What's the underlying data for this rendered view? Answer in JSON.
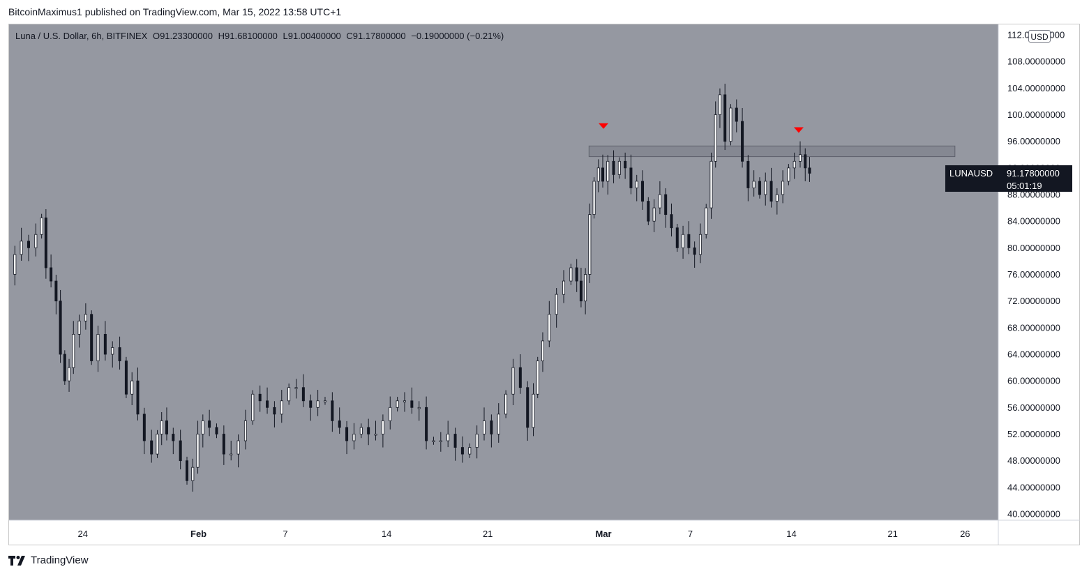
{
  "publisher_line": "BitcoinMaximus1 published on TradingView.com, Mar 15, 2022 13:58 UTC+1",
  "legend": {
    "title": "Luna / U.S. Dollar, 6h, BITFINEX",
    "o_label": "O",
    "o_value": "91.23300000",
    "h_label": "H",
    "h_value": "91.68100000",
    "l_label": "L",
    "l_value": "91.00400000",
    "c_label": "C",
    "c_value": "91.17800000",
    "change": "−0.19000000 (−0.21%)"
  },
  "currency_badge": "USD",
  "price_tag": {
    "symbol": "LUNAUSD",
    "price": "91.17800000",
    "countdown": "05:01:19"
  },
  "footer_brand": "TradingView",
  "colors": {
    "plot_bg": "#9598a1",
    "candle_up": "#ffffff",
    "candle_down": "#131722",
    "marker": "#ff0000",
    "zone": "#787b86"
  },
  "chart_data": {
    "type": "candlestick",
    "title": "Luna / U.S. Dollar, 6h, BITFINEX",
    "ylim": [
      40,
      112
    ],
    "y_ticks": [
      "112.00000000",
      "108.00000000",
      "104.00000000",
      "100.00000000",
      "96.00000000",
      "92.00000000",
      "88.00000000",
      "84.00000000",
      "80.00000000",
      "76.00000000",
      "72.00000000",
      "68.00000000",
      "64.00000000",
      "60.00000000",
      "56.00000000",
      "52.00000000",
      "48.00000000",
      "44.00000000",
      "40.00000000"
    ],
    "x_ticks": [
      {
        "label": "24",
        "day": 24
      },
      {
        "label": "Feb",
        "day": 32
      },
      {
        "label": "7",
        "day": 38
      },
      {
        "label": "14",
        "day": 45
      },
      {
        "label": "21",
        "day": 52
      },
      {
        "label": "Mar",
        "day": 60
      },
      {
        "label": "7",
        "day": 66
      },
      {
        "label": "14",
        "day": 73
      },
      {
        "label": "21",
        "day": 80
      },
      {
        "label": "26",
        "day": 85
      }
    ],
    "resistance_zone": {
      "low": 93.7,
      "high": 95.3,
      "day_start": 59.0,
      "day_end": 84.3
    },
    "markers": [
      {
        "day": 60.0,
        "price": 98.3
      },
      {
        "day": 73.5,
        "price": 97.7
      }
    ],
    "last_price": 91.178,
    "series": [
      {
        "day": 19.1,
        "price": 76
      },
      {
        "day": 19.5,
        "price": 79
      },
      {
        "day": 20.0,
        "price": 81
      },
      {
        "day": 20.5,
        "price": 80
      },
      {
        "day": 21.0,
        "price": 82
      },
      {
        "day": 21.3,
        "price": 84.5
      },
      {
        "day": 21.6,
        "price": 77
      },
      {
        "day": 22.0,
        "price": 75
      },
      {
        "day": 22.3,
        "price": 72
      },
      {
        "day": 22.6,
        "price": 64
      },
      {
        "day": 22.9,
        "price": 60
      },
      {
        "day": 23.2,
        "price": 62
      },
      {
        "day": 23.5,
        "price": 67
      },
      {
        "day": 24.0,
        "price": 69
      },
      {
        "day": 24.4,
        "price": 70
      },
      {
        "day": 24.8,
        "price": 63
      },
      {
        "day": 25.3,
        "price": 67
      },
      {
        "day": 25.8,
        "price": 64
      },
      {
        "day": 26.3,
        "price": 65
      },
      {
        "day": 26.8,
        "price": 63
      },
      {
        "day": 27.2,
        "price": 58
      },
      {
        "day": 27.6,
        "price": 60
      },
      {
        "day": 28.0,
        "price": 55
      },
      {
        "day": 28.5,
        "price": 51
      },
      {
        "day": 29.0,
        "price": 49
      },
      {
        "day": 29.3,
        "price": 52
      },
      {
        "day": 29.6,
        "price": 54
      },
      {
        "day": 30.0,
        "price": 52
      },
      {
        "day": 30.5,
        "price": 51
      },
      {
        "day": 31.0,
        "price": 48
      },
      {
        "day": 31.4,
        "price": 45
      },
      {
        "day": 31.8,
        "price": 47
      },
      {
        "day": 32.1,
        "price": 52
      },
      {
        "day": 32.5,
        "price": 54
      },
      {
        "day": 33.0,
        "price": 53
      },
      {
        "day": 33.5,
        "price": 52
      },
      {
        "day": 34.0,
        "price": 49
      },
      {
        "day": 34.5,
        "price": 49
      },
      {
        "day": 35.0,
        "price": 51
      },
      {
        "day": 35.5,
        "price": 54
      },
      {
        "day": 36.0,
        "price": 58
      },
      {
        "day": 36.5,
        "price": 57
      },
      {
        "day": 37.0,
        "price": 56
      },
      {
        "day": 37.5,
        "price": 55
      },
      {
        "day": 38.0,
        "price": 57
      },
      {
        "day": 38.5,
        "price": 59
      },
      {
        "day": 39.0,
        "price": 59
      },
      {
        "day": 39.5,
        "price": 57
      },
      {
        "day": 40.0,
        "price": 56
      },
      {
        "day": 40.5,
        "price": 57
      },
      {
        "day": 41.0,
        "price": 57
      },
      {
        "day": 41.5,
        "price": 54
      },
      {
        "day": 42.0,
        "price": 53
      },
      {
        "day": 42.5,
        "price": 51
      },
      {
        "day": 43.0,
        "price": 52
      },
      {
        "day": 43.5,
        "price": 53
      },
      {
        "day": 44.0,
        "price": 52
      },
      {
        "day": 44.5,
        "price": 52
      },
      {
        "day": 45.0,
        "price": 54
      },
      {
        "day": 45.5,
        "price": 56
      },
      {
        "day": 46.0,
        "price": 57
      },
      {
        "day": 46.5,
        "price": 57
      },
      {
        "day": 47.0,
        "price": 56
      },
      {
        "day": 47.5,
        "price": 56
      },
      {
        "day": 48.0,
        "price": 51
      },
      {
        "day": 48.5,
        "price": 51
      },
      {
        "day": 49.0,
        "price": 51
      },
      {
        "day": 49.5,
        "price": 52
      },
      {
        "day": 50.0,
        "price": 50
      },
      {
        "day": 50.5,
        "price": 49
      },
      {
        "day": 51.0,
        "price": 50
      },
      {
        "day": 51.5,
        "price": 52
      },
      {
        "day": 52.0,
        "price": 54
      },
      {
        "day": 52.5,
        "price": 52
      },
      {
        "day": 53.0,
        "price": 55
      },
      {
        "day": 53.5,
        "price": 58
      },
      {
        "day": 54.0,
        "price": 62
      },
      {
        "day": 54.5,
        "price": 59
      },
      {
        "day": 55.0,
        "price": 53
      },
      {
        "day": 55.3,
        "price": 58
      },
      {
        "day": 55.6,
        "price": 63
      },
      {
        "day": 56.0,
        "price": 66
      },
      {
        "day": 56.5,
        "price": 70
      },
      {
        "day": 57.0,
        "price": 73
      },
      {
        "day": 57.5,
        "price": 75
      },
      {
        "day": 58.0,
        "price": 77
      },
      {
        "day": 58.3,
        "price": 75
      },
      {
        "day": 58.6,
        "price": 72
      },
      {
        "day": 58.9,
        "price": 76
      },
      {
        "day": 59.2,
        "price": 85
      },
      {
        "day": 59.5,
        "price": 90
      },
      {
        "day": 59.8,
        "price": 92
      },
      {
        "day": 60.1,
        "price": 90
      },
      {
        "day": 60.5,
        "price": 93
      },
      {
        "day": 60.9,
        "price": 91
      },
      {
        "day": 61.3,
        "price": 93
      },
      {
        "day": 61.7,
        "price": 92
      },
      {
        "day": 62.1,
        "price": 89
      },
      {
        "day": 62.5,
        "price": 90
      },
      {
        "day": 62.9,
        "price": 87
      },
      {
        "day": 63.3,
        "price": 84
      },
      {
        "day": 63.7,
        "price": 86
      },
      {
        "day": 64.1,
        "price": 88
      },
      {
        "day": 64.5,
        "price": 85
      },
      {
        "day": 64.9,
        "price": 83
      },
      {
        "day": 65.3,
        "price": 80
      },
      {
        "day": 65.7,
        "price": 82
      },
      {
        "day": 66.1,
        "price": 80
      },
      {
        "day": 66.5,
        "price": 79
      },
      {
        "day": 66.9,
        "price": 82
      },
      {
        "day": 67.3,
        "price": 86
      },
      {
        "day": 67.6,
        "price": 93
      },
      {
        "day": 67.9,
        "price": 100
      },
      {
        "day": 68.2,
        "price": 103
      },
      {
        "day": 68.6,
        "price": 96
      },
      {
        "day": 69.0,
        "price": 101
      },
      {
        "day": 69.4,
        "price": 99
      },
      {
        "day": 69.8,
        "price": 93
      },
      {
        "day": 70.2,
        "price": 89
      },
      {
        "day": 70.6,
        "price": 90
      },
      {
        "day": 71.0,
        "price": 88
      },
      {
        "day": 71.4,
        "price": 90
      },
      {
        "day": 71.8,
        "price": 87
      },
      {
        "day": 72.2,
        "price": 88
      },
      {
        "day": 72.6,
        "price": 90
      },
      {
        "day": 73.0,
        "price": 92
      },
      {
        "day": 73.4,
        "price": 93
      },
      {
        "day": 73.8,
        "price": 94
      },
      {
        "day": 74.1,
        "price": 92
      },
      {
        "day": 74.4,
        "price": 91.2
      }
    ]
  }
}
